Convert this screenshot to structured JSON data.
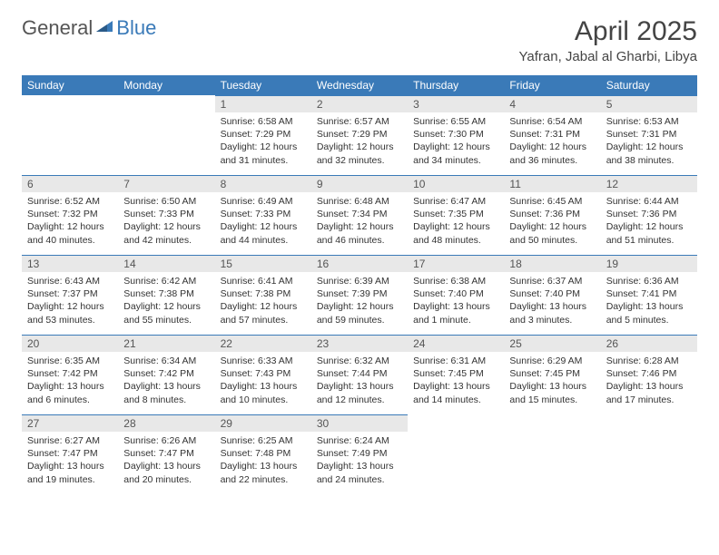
{
  "logo": {
    "general": "General",
    "blue": "Blue"
  },
  "header": {
    "title": "April 2025",
    "location": "Yafran, Jabal al Gharbi, Libya"
  },
  "colors": {
    "header_bg": "#3a7ab8",
    "daynum_bg": "#e8e8e8",
    "border": "#3a7ab8"
  },
  "weekdays": [
    "Sunday",
    "Monday",
    "Tuesday",
    "Wednesday",
    "Thursday",
    "Friday",
    "Saturday"
  ],
  "grid": [
    [
      null,
      null,
      {
        "n": "1",
        "sr": "6:58 AM",
        "ss": "7:29 PM",
        "dl": "12 hours and 31 minutes."
      },
      {
        "n": "2",
        "sr": "6:57 AM",
        "ss": "7:29 PM",
        "dl": "12 hours and 32 minutes."
      },
      {
        "n": "3",
        "sr": "6:55 AM",
        "ss": "7:30 PM",
        "dl": "12 hours and 34 minutes."
      },
      {
        "n": "4",
        "sr": "6:54 AM",
        "ss": "7:31 PM",
        "dl": "12 hours and 36 minutes."
      },
      {
        "n": "5",
        "sr": "6:53 AM",
        "ss": "7:31 PM",
        "dl": "12 hours and 38 minutes."
      }
    ],
    [
      {
        "n": "6",
        "sr": "6:52 AM",
        "ss": "7:32 PM",
        "dl": "12 hours and 40 minutes."
      },
      {
        "n": "7",
        "sr": "6:50 AM",
        "ss": "7:33 PM",
        "dl": "12 hours and 42 minutes."
      },
      {
        "n": "8",
        "sr": "6:49 AM",
        "ss": "7:33 PM",
        "dl": "12 hours and 44 minutes."
      },
      {
        "n": "9",
        "sr": "6:48 AM",
        "ss": "7:34 PM",
        "dl": "12 hours and 46 minutes."
      },
      {
        "n": "10",
        "sr": "6:47 AM",
        "ss": "7:35 PM",
        "dl": "12 hours and 48 minutes."
      },
      {
        "n": "11",
        "sr": "6:45 AM",
        "ss": "7:36 PM",
        "dl": "12 hours and 50 minutes."
      },
      {
        "n": "12",
        "sr": "6:44 AM",
        "ss": "7:36 PM",
        "dl": "12 hours and 51 minutes."
      }
    ],
    [
      {
        "n": "13",
        "sr": "6:43 AM",
        "ss": "7:37 PM",
        "dl": "12 hours and 53 minutes."
      },
      {
        "n": "14",
        "sr": "6:42 AM",
        "ss": "7:38 PM",
        "dl": "12 hours and 55 minutes."
      },
      {
        "n": "15",
        "sr": "6:41 AM",
        "ss": "7:38 PM",
        "dl": "12 hours and 57 minutes."
      },
      {
        "n": "16",
        "sr": "6:39 AM",
        "ss": "7:39 PM",
        "dl": "12 hours and 59 minutes."
      },
      {
        "n": "17",
        "sr": "6:38 AM",
        "ss": "7:40 PM",
        "dl": "13 hours and 1 minute."
      },
      {
        "n": "18",
        "sr": "6:37 AM",
        "ss": "7:40 PM",
        "dl": "13 hours and 3 minutes."
      },
      {
        "n": "19",
        "sr": "6:36 AM",
        "ss": "7:41 PM",
        "dl": "13 hours and 5 minutes."
      }
    ],
    [
      {
        "n": "20",
        "sr": "6:35 AM",
        "ss": "7:42 PM",
        "dl": "13 hours and 6 minutes."
      },
      {
        "n": "21",
        "sr": "6:34 AM",
        "ss": "7:42 PM",
        "dl": "13 hours and 8 minutes."
      },
      {
        "n": "22",
        "sr": "6:33 AM",
        "ss": "7:43 PM",
        "dl": "13 hours and 10 minutes."
      },
      {
        "n": "23",
        "sr": "6:32 AM",
        "ss": "7:44 PM",
        "dl": "13 hours and 12 minutes."
      },
      {
        "n": "24",
        "sr": "6:31 AM",
        "ss": "7:45 PM",
        "dl": "13 hours and 14 minutes."
      },
      {
        "n": "25",
        "sr": "6:29 AM",
        "ss": "7:45 PM",
        "dl": "13 hours and 15 minutes."
      },
      {
        "n": "26",
        "sr": "6:28 AM",
        "ss": "7:46 PM",
        "dl": "13 hours and 17 minutes."
      }
    ],
    [
      {
        "n": "27",
        "sr": "6:27 AM",
        "ss": "7:47 PM",
        "dl": "13 hours and 19 minutes."
      },
      {
        "n": "28",
        "sr": "6:26 AM",
        "ss": "7:47 PM",
        "dl": "13 hours and 20 minutes."
      },
      {
        "n": "29",
        "sr": "6:25 AM",
        "ss": "7:48 PM",
        "dl": "13 hours and 22 minutes."
      },
      {
        "n": "30",
        "sr": "6:24 AM",
        "ss": "7:49 PM",
        "dl": "13 hours and 24 minutes."
      },
      null,
      null,
      null
    ]
  ],
  "labels": {
    "sunrise": "Sunrise:",
    "sunset": "Sunset:",
    "daylight": "Daylight:"
  }
}
